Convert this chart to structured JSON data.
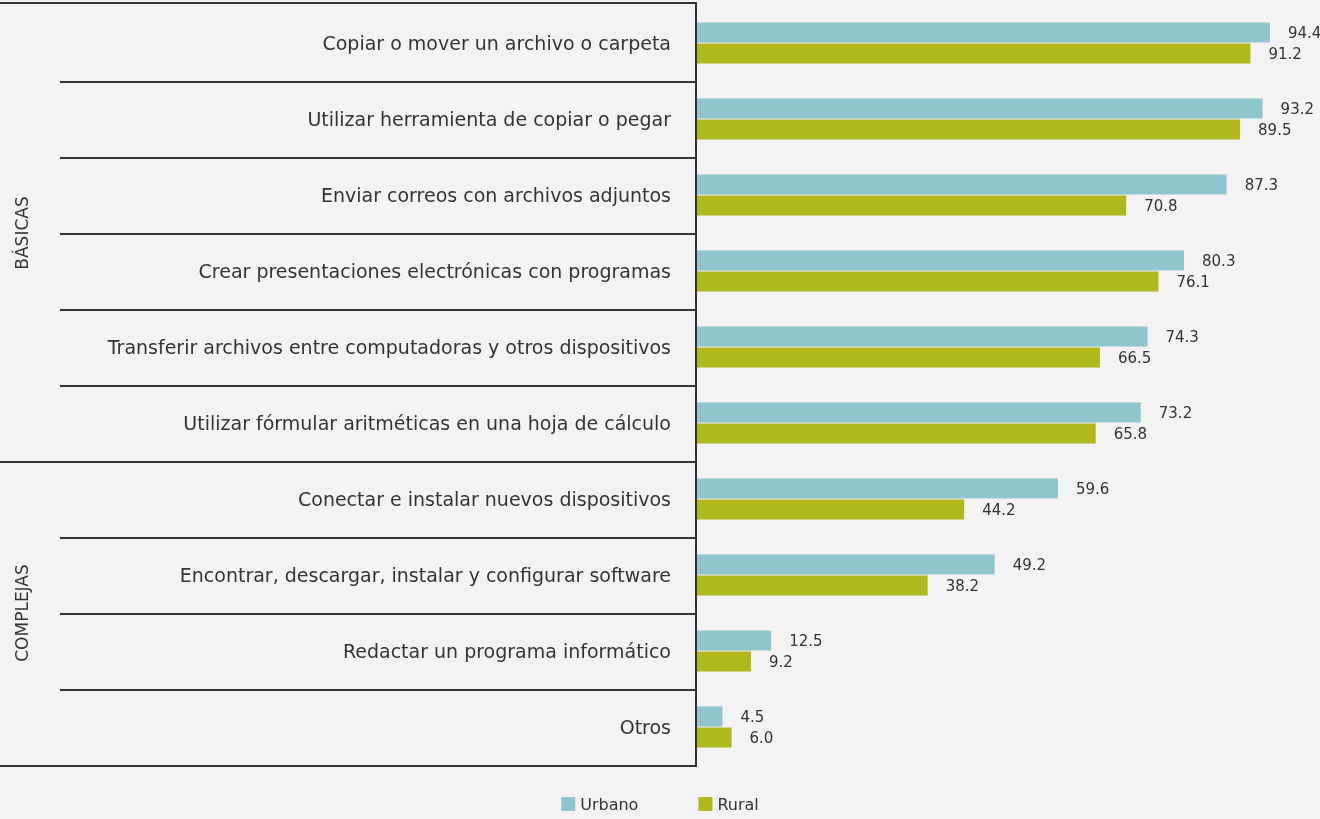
{
  "chart_data": {
    "type": "bar",
    "orientation": "horizontal",
    "categories": [
      "Copiar o mover un archivo o carpeta",
      "Utilizar herramienta de copiar o pegar",
      "Enviar correos con archivos adjuntos",
      "Crear presentaciones electrónicas con programas",
      "Transferir archivos entre computadoras y otros dispositivos",
      "Utilizar fórmular aritméticas en una hoja de cálculo",
      "Conectar e instalar nuevos dispositivos",
      "Encontrar, descargar, instalar y configurar software",
      "Redactar un programa informático",
      "Otros"
    ],
    "series": [
      {
        "name": "Urbano",
        "color": "#8fc5cf",
        "values": [
          94.4,
          93.2,
          87.3,
          80.3,
          74.3,
          73.2,
          59.6,
          49.2,
          12.5,
          4.5
        ],
        "value_labels": [
          "94.4",
          "93.2",
          "87.3",
          "80.3",
          "74.3",
          "73.2",
          "59.6",
          "49.2",
          "12.5",
          "4.5"
        ]
      },
      {
        "name": "Rural",
        "color": "#b0b81e",
        "values": [
          91.2,
          89.5,
          70.8,
          76.1,
          66.5,
          65.8,
          44.2,
          38.2,
          9.2,
          6.0
        ],
        "value_labels": [
          "91.2",
          "89.5",
          "70.8",
          "76.1",
          "66.5",
          "65.8",
          "44.2",
          "38.2",
          "9.2",
          "6.0"
        ]
      }
    ],
    "legend": "bottom",
    "annotations": [
      "BÁSICAS",
      "COMPLEJAS"
    ]
  }
}
